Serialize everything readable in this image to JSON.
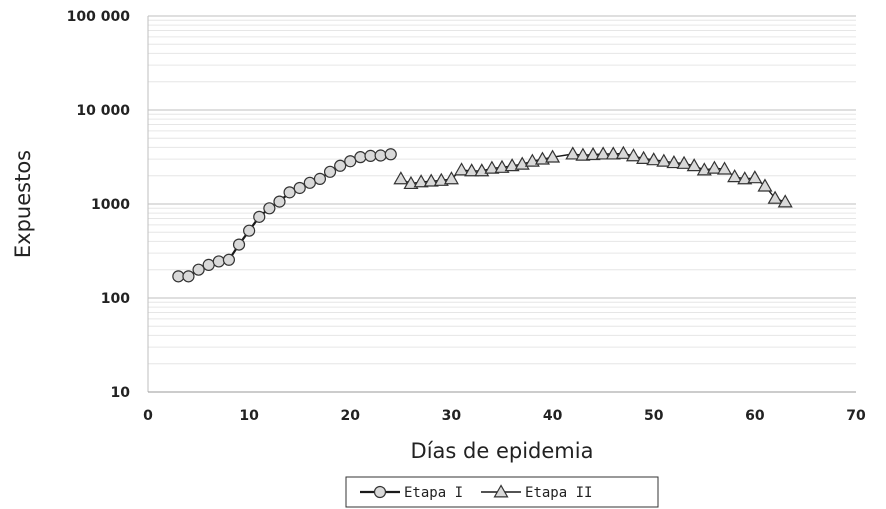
{
  "chart_data": {
    "type": "line",
    "title": "",
    "xlabel": "Días de epidemia",
    "ylabel": "Expuestos",
    "xlim": [
      0,
      70
    ],
    "ylim": [
      10,
      100000
    ],
    "y_scale": "log",
    "x_ticks": [
      0,
      10,
      20,
      30,
      40,
      50,
      60,
      70
    ],
    "x_tick_labels": [
      "0",
      "10",
      "20",
      "30",
      "40",
      "50",
      "60",
      "70"
    ],
    "y_ticks": [
      10,
      100,
      1000,
      10000,
      100000
    ],
    "y_tick_labels": [
      "10",
      "100",
      "1000",
      "10 000",
      "100 000"
    ],
    "grid": "horizontal major and minor",
    "legend_position": "bottom-center",
    "series": [
      {
        "name": "Etapa I",
        "marker": "circle",
        "color": "#1a1a1a",
        "x": [
          3,
          4,
          5,
          6,
          7,
          8,
          9,
          10,
          11,
          12,
          13,
          14,
          15,
          16,
          17,
          18,
          19,
          20,
          21,
          22,
          23,
          24
        ],
        "y": [
          170,
          170,
          200,
          225,
          245,
          255,
          370,
          520,
          730,
          900,
          1060,
          1330,
          1480,
          1680,
          1850,
          2200,
          2550,
          2850,
          3150,
          3250,
          3280,
          3380
        ]
      },
      {
        "name": "Etapa II",
        "marker": "triangle",
        "color": "#1a1a1a",
        "x": [
          25,
          26,
          27,
          28,
          29,
          30,
          31,
          32,
          33,
          34,
          35,
          36,
          37,
          38,
          39,
          40,
          42,
          43,
          44,
          45,
          46,
          47,
          48,
          49,
          50,
          51,
          52,
          53,
          54,
          55,
          56,
          57,
          58,
          59,
          60,
          61,
          62,
          63
        ],
        "y": [
          1850,
          1650,
          1720,
          1750,
          1780,
          1850,
          2300,
          2250,
          2250,
          2400,
          2450,
          2550,
          2650,
          2850,
          3000,
          3150,
          3400,
          3300,
          3350,
          3400,
          3400,
          3450,
          3250,
          3050,
          2950,
          2850,
          2750,
          2700,
          2550,
          2300,
          2400,
          2350,
          1950,
          1850,
          1900,
          1550,
          1150,
          1050
        ]
      }
    ]
  }
}
